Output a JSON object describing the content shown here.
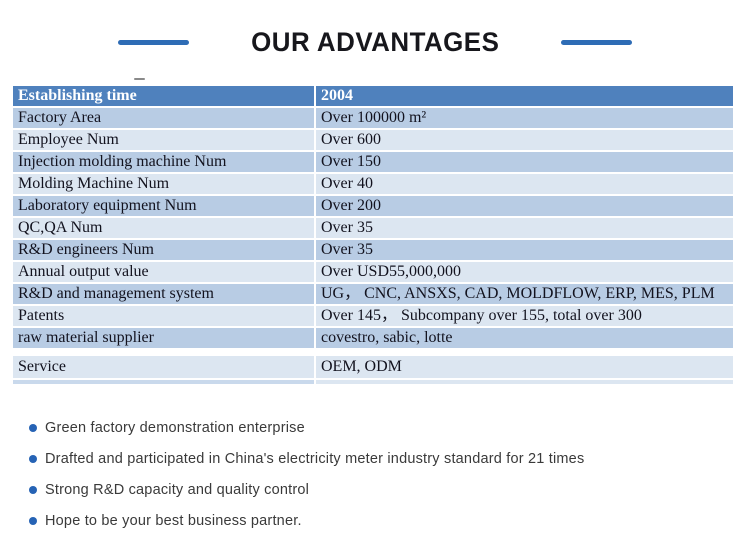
{
  "header": {
    "title": "OUR ADVANTAGES"
  },
  "colors": {
    "accent_blue": "#2e6cb5",
    "table_header_bg": "#4f81bd",
    "row_dark": "#b8cce4",
    "row_light": "#dce6f1",
    "bullet_dot": "#2663b5"
  },
  "table": {
    "header": {
      "label": "Establishing time",
      "value": "2004"
    },
    "rows": [
      {
        "label": "Factory Area",
        "value": "Over 100000 m²"
      },
      {
        "label": "Employee Num",
        "value": "Over 600"
      },
      {
        "label": "Injection molding machine Num",
        "value": "Over 150"
      },
      {
        "label": "Molding Machine Num",
        "value": "Over 40"
      },
      {
        "label": "Laboratory equipment Num",
        "value": "Over 200"
      },
      {
        "label": "QC,QA Num",
        "value": "Over 35"
      },
      {
        "label": "R&D engineers Num",
        "value": "Over 35"
      },
      {
        "label": "Annual output value",
        "value": "Over USD55,000,000"
      },
      {
        "label": "R&D and management system",
        "value": "UG， CNC, ANSXS, CAD, MOLDFLOW, ERP, MES, PLM"
      },
      {
        "label": "Patents",
        "value": "Over 145， Subcompany over 155, total over 300"
      },
      {
        "label": "raw material supplier",
        "value": "covestro, sabic, lotte"
      }
    ],
    "service": {
      "label": "Service",
      "value": "OEM, ODM"
    }
  },
  "bullets": {
    "items": [
      "Green factory demonstration enterprise",
      "Drafted and participated in China's electricity meter industry standard for 21 times",
      "Strong R&D capacity and quality control",
      "Hope to be your best business partner."
    ]
  }
}
